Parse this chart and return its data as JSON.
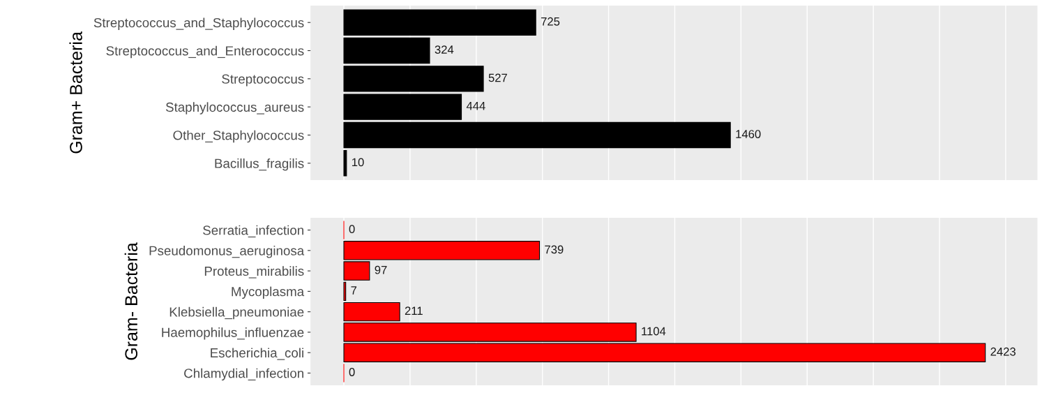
{
  "chart_data": [
    {
      "type": "bar",
      "orientation": "horizontal",
      "ylabel": "Gram+ Bacteria",
      "categories": [
        "Streptococcus_and_Staphylococcus",
        "Streptococcus_and_Enterococcus",
        "Streptococcus",
        "Staphylococcus_aureus",
        "Other_Staphylococcus",
        "Bacillus_fragilis"
      ],
      "values": [
        725,
        324,
        527,
        444,
        1460,
        10
      ],
      "color": "#000000",
      "data_labels": true,
      "xlim": [
        -126,
        2620
      ],
      "xticks": [
        {
          "value": 0,
          "label": null
        },
        {
          "value": 250,
          "label": null
        },
        {
          "value": 500,
          "label": null
        },
        {
          "value": 750,
          "label": null
        },
        {
          "value": 1000,
          "label": null
        },
        {
          "value": 1250,
          "label": null
        },
        {
          "value": 1500,
          "label": null
        },
        {
          "value": 1750,
          "label": null
        },
        {
          "value": 2000,
          "label": null
        },
        {
          "value": 2250,
          "label": null
        },
        {
          "value": 2500,
          "label": null
        }
      ],
      "tick_labels": "y",
      "grid": true,
      "legend": false
    },
    {
      "type": "bar",
      "orientation": "horizontal",
      "ylabel": "Gram- Bacteria",
      "categories": [
        "Serratia_infection",
        "Pseudomonus_aeruginosa",
        "Proteus_mirabilis",
        "Mycoplasma",
        "Klebsiella_pneumoniae",
        "Haemophilus_influenzae",
        "Escherichia_coli",
        "Chlamydial_infection"
      ],
      "values": [
        0,
        739,
        97,
        7,
        211,
        1104,
        2423,
        0
      ],
      "color": "#ff0000",
      "data_labels": true,
      "xlim": [
        -126,
        2620
      ],
      "xticks": [
        {
          "value": 0,
          "label": null
        },
        {
          "value": 250,
          "label": null
        },
        {
          "value": 500,
          "label": null
        },
        {
          "value": 750,
          "label": null
        },
        {
          "value": 1000,
          "label": null
        },
        {
          "value": 1250,
          "label": null
        },
        {
          "value": 1500,
          "label": null
        },
        {
          "value": 1750,
          "label": null
        },
        {
          "value": 2000,
          "label": null
        },
        {
          "value": 2250,
          "label": null
        },
        {
          "value": 2500,
          "label": null
        }
      ],
      "tick_labels": "y",
      "grid": true,
      "legend": false
    }
  ]
}
